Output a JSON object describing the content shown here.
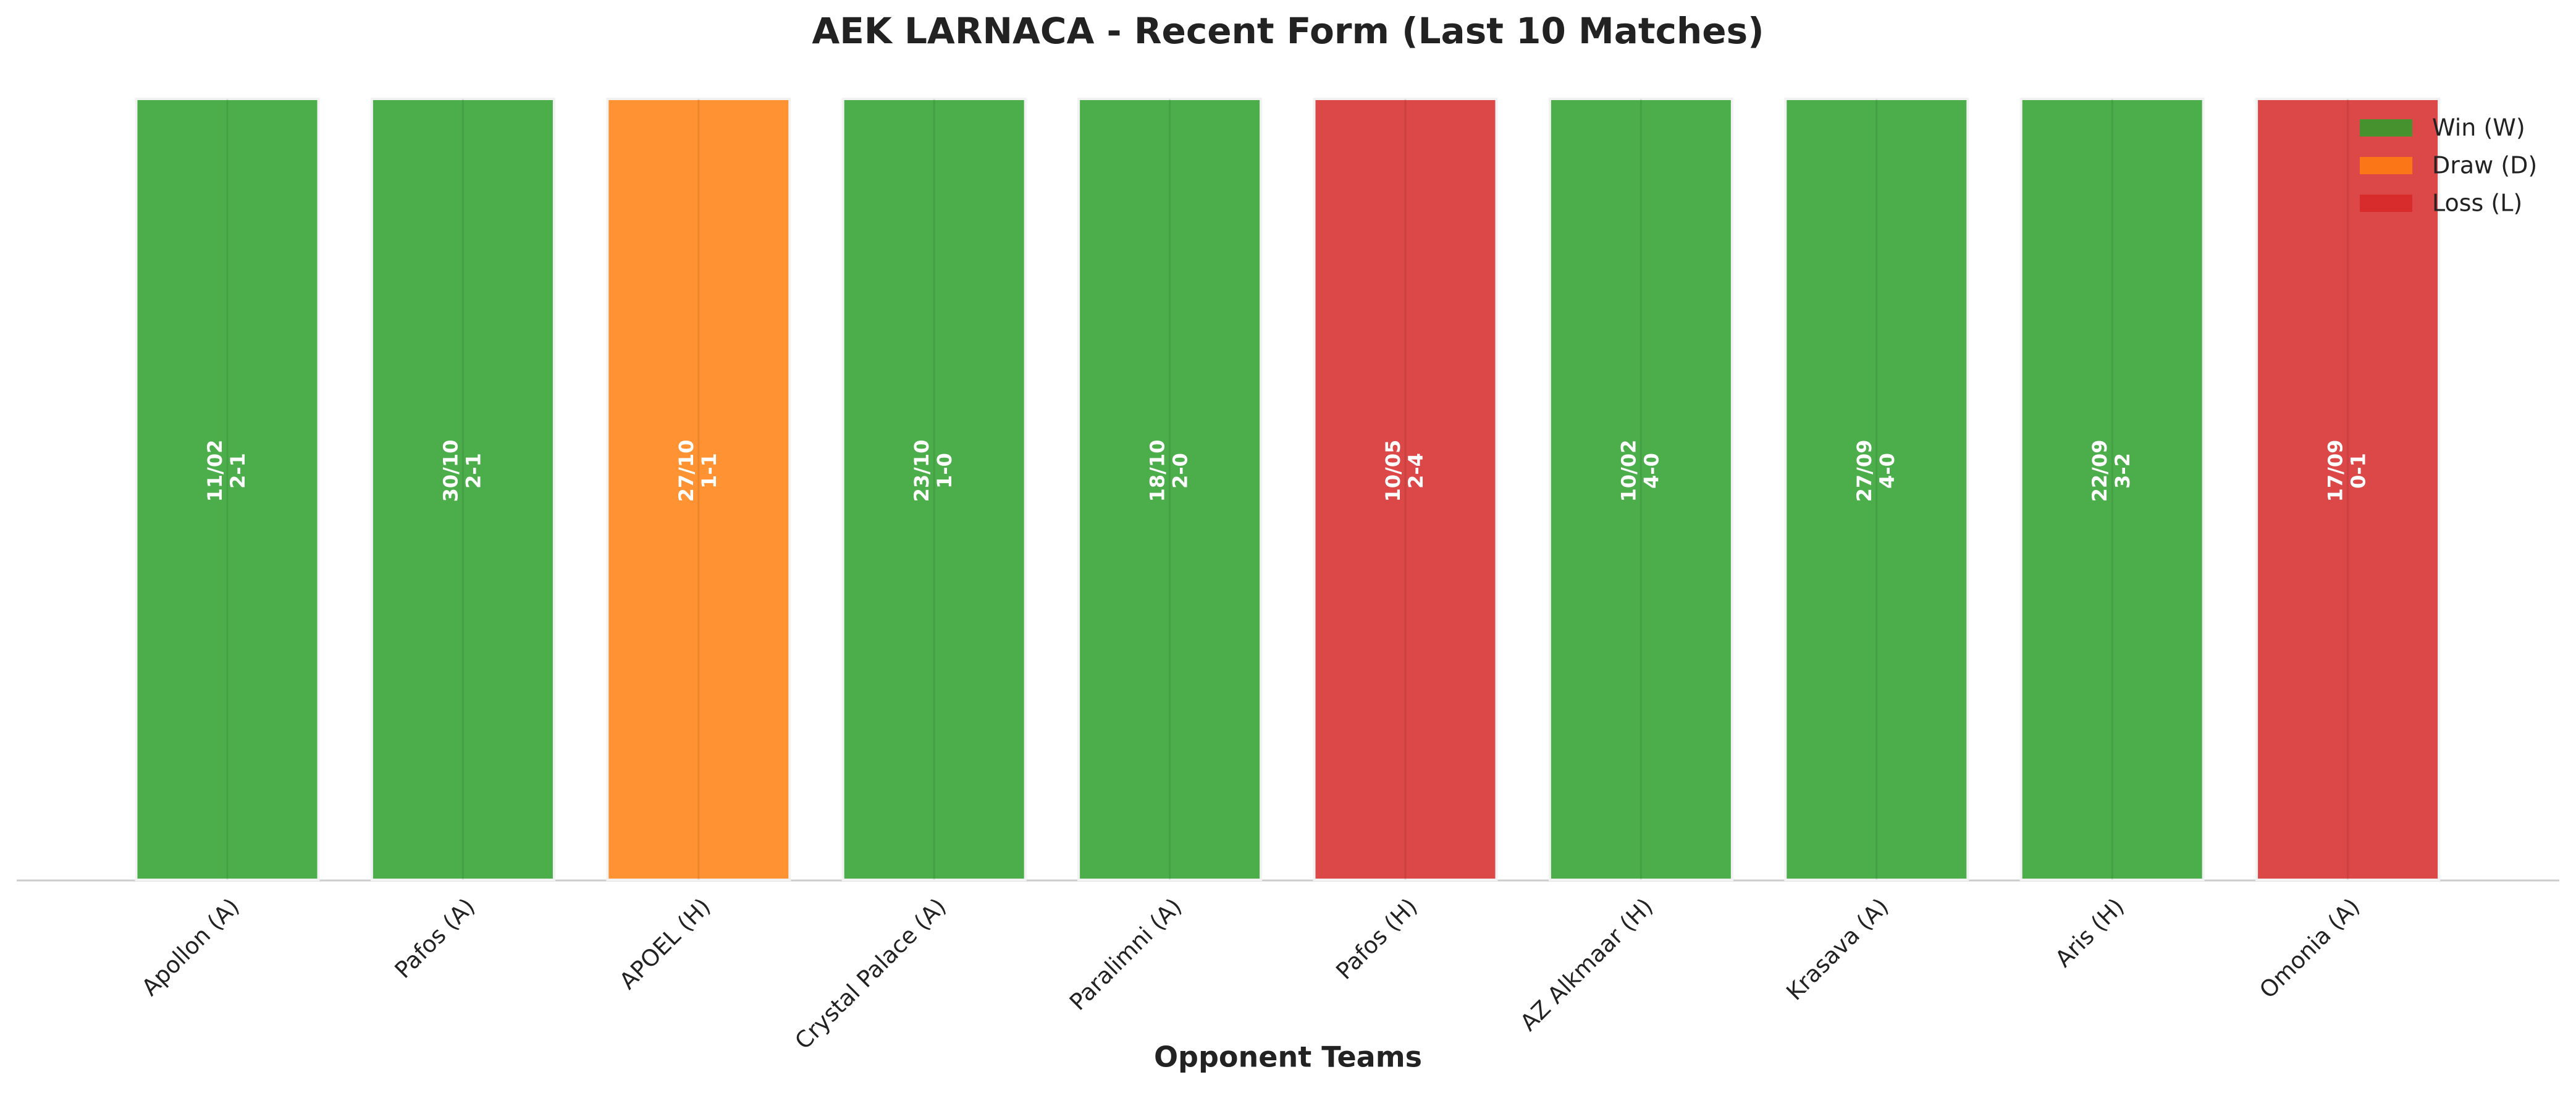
{
  "chart_data": {
    "type": "bar",
    "title": "AEK LARNACA - Recent Form (Last 10 Matches)",
    "xlabel": "Opponent Teams",
    "categories": [
      "Apollon (A)",
      "Pafos (A)",
      "APOEL (H)",
      "Crystal Palace (A)",
      "Paralimni (A)",
      "Pafos (H)",
      "AZ Alkmaar (H)",
      "Krasava (A)",
      "Aris (H)",
      "Omonia (A)"
    ],
    "values": [
      1,
      1,
      1,
      1,
      1,
      1,
      1,
      1,
      1,
      1
    ],
    "ylim": [
      0,
      1
    ],
    "dates": [
      "11/02",
      "30/10",
      "27/10",
      "23/10",
      "18/10",
      "10/05",
      "10/02",
      "27/09",
      "22/09",
      "17/09"
    ],
    "scores": [
      "2-1",
      "2-1",
      "1-1",
      "1-0",
      "2-0",
      "2-4",
      "4-0",
      "4-0",
      "3-2",
      "0-1"
    ],
    "colors": [
      "#2ca02c",
      "#2ca02c",
      "#ff7f0e",
      "#2ca02c",
      "#2ca02c",
      "#d62728",
      "#2ca02c",
      "#2ca02c",
      "#2ca02c",
      "#d62728"
    ],
    "legend_position": "upper right",
    "legend": [
      {
        "name": "Win (W)",
        "color": "#2ca02c"
      },
      {
        "name": "Draw (D)",
        "color": "#ff7f0e"
      },
      {
        "name": "Loss (L)",
        "color": "#d62728"
      }
    ]
  }
}
